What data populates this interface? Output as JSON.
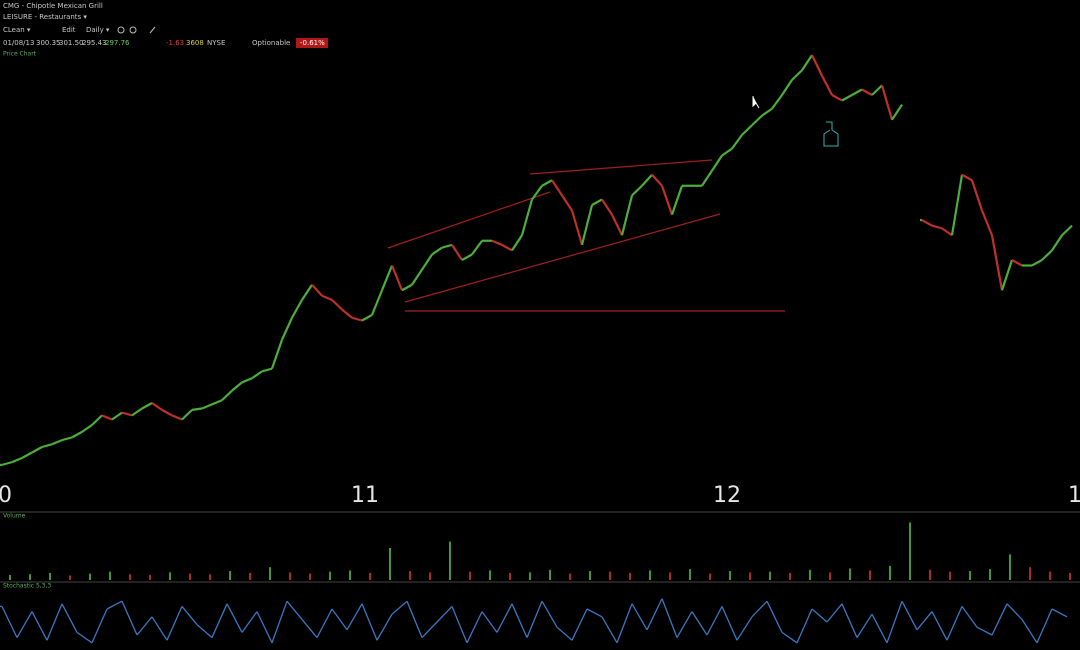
{
  "header": {
    "symbol": "CMG - Chipotle Mexican Grill",
    "industry": "LEISURE - Restaurants ▾",
    "layout": "CLean ▾",
    "edit": "Edit",
    "period": "Daily ▾",
    "date": "01/08/13",
    "open": "300.35",
    "high": "301.50",
    "low": "295.43",
    "close": "297.76",
    "change": "-1.63",
    "volume": "3608",
    "exchange": "NYSE",
    "optionable": "Optionable",
    "change_pct": "-0.61%",
    "pane_label": "Price Chart"
  },
  "chart_data": [
    {
      "type": "line",
      "name": "price",
      "up_color": "#4caf3a",
      "down_color": "#c0302a",
      "ylim": [
        140,
        460
      ],
      "xtick_labels": [
        "0",
        "11",
        "12",
        "1"
      ],
      "values": [
        151,
        153,
        156,
        160,
        164,
        166,
        169,
        171,
        175,
        180,
        187,
        184,
        189,
        187,
        192,
        196,
        191,
        187,
        184,
        191,
        192,
        195,
        198,
        205,
        211,
        214,
        219,
        221,
        242,
        258,
        271,
        282,
        274,
        271,
        264,
        258,
        256,
        260,
        278,
        296,
        278,
        282,
        293,
        304,
        309,
        311,
        300,
        304,
        314,
        314,
        311,
        307,
        318,
        344,
        354,
        358,
        347,
        336,
        311,
        340,
        344,
        333,
        318,
        347,
        354,
        362,
        354,
        333,
        354,
        354,
        354,
        365,
        376,
        381,
        391,
        398,
        405,
        410,
        420,
        431,
        438,
        449,
        434,
        420,
        416,
        420,
        424,
        420,
        427,
        402,
        413,
        null,
        329,
        325,
        323,
        318,
        362,
        358,
        336,
        318,
        278,
        300,
        296,
        296,
        300,
        307,
        318,
        325
      ]
    },
    {
      "type": "bar",
      "name": "Volume",
      "up_color": "#3f9a34",
      "down_color": "#b02a25",
      "ylim": [
        0,
        10
      ],
      "values": [
        0.8,
        0.9,
        1.1,
        0.7,
        1.0,
        1.3,
        0.9,
        0.8,
        1.2,
        1.0,
        0.9,
        1.4,
        1.1,
        2.0,
        1.2,
        1.0,
        1.3,
        1.5,
        1.1,
        5.0,
        1.4,
        1.2,
        6.0,
        1.3,
        1.5,
        1.1,
        1.2,
        1.6,
        1.0,
        1.4,
        1.3,
        1.1,
        1.5,
        1.2,
        1.7,
        1.0,
        1.4,
        1.2,
        1.3,
        1.1,
        1.6,
        1.2,
        1.8,
        1.5,
        2.2,
        9.0,
        1.6,
        1.3,
        1.4,
        1.7,
        4.0,
        2.0,
        1.3,
        1.1
      ]
    },
    {
      "type": "line",
      "name": "Stochastic 5,3,3",
      "color": "#3a78c0",
      "ylim": [
        0,
        100
      ],
      "values": [
        80,
        20,
        70,
        15,
        85,
        30,
        10,
        75,
        90,
        25,
        60,
        15,
        80,
        45,
        20,
        85,
        30,
        70,
        10,
        90,
        55,
        20,
        75,
        35,
        85,
        15,
        65,
        90,
        20,
        50,
        80,
        10,
        70,
        30,
        85,
        20,
        90,
        40,
        15,
        75,
        60,
        10,
        85,
        35,
        95,
        20,
        70,
        25,
        80,
        15,
        60,
        90,
        30,
        10,
        75,
        50,
        85,
        20,
        65,
        10,
        90,
        35,
        70,
        15,
        80,
        40,
        25,
        85,
        55,
        10,
        75,
        60
      ]
    }
  ]
}
